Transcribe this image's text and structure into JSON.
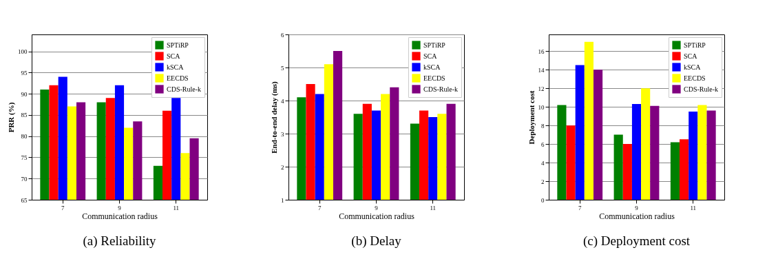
{
  "chart_data": [
    {
      "type": "bar",
      "xlabel": "Communication radius",
      "ylabel": "PRR (%)",
      "categories": [
        "7",
        "9",
        "11"
      ],
      "ylim": [
        65,
        104
      ],
      "yticks": [
        65,
        70,
        75,
        80,
        85,
        90,
        95,
        100
      ],
      "grid": "y",
      "legend": "top right",
      "annotations": [
        "(a) Reliability"
      ],
      "series": [
        {
          "name": "SPTiRP",
          "color": "#008000",
          "values": [
            91,
            88,
            73
          ]
        },
        {
          "name": "SCA",
          "color": "#ff0000",
          "values": [
            92,
            89,
            86
          ]
        },
        {
          "name": "kSCA",
          "color": "#0000ff",
          "values": [
            94,
            92,
            89
          ]
        },
        {
          "name": "EECDS",
          "color": "#ffff00",
          "values": [
            87,
            82,
            76
          ]
        },
        {
          "name": "CDS-Rule-k",
          "color": "#800080",
          "values": [
            88,
            83.5,
            79.5
          ]
        }
      ]
    },
    {
      "type": "bar",
      "xlabel": "Communication radius",
      "ylabel": "End-to-end delay (ms)",
      "categories": [
        "7",
        "9",
        "11"
      ],
      "ylim": [
        1,
        6
      ],
      "yticks": [
        1,
        2,
        3,
        4,
        5,
        6
      ],
      "grid": "y",
      "legend": "top right",
      "annotations": [
        "(b) Delay"
      ],
      "series": [
        {
          "name": "SPTiRP",
          "color": "#008000",
          "values": [
            4.1,
            3.6,
            3.3
          ]
        },
        {
          "name": "SCA",
          "color": "#ff0000",
          "values": [
            4.5,
            3.9,
            3.7
          ]
        },
        {
          "name": "kSCA",
          "color": "#0000ff",
          "values": [
            4.2,
            3.7,
            3.5
          ]
        },
        {
          "name": "EECDS",
          "color": "#ffff00",
          "values": [
            5.1,
            4.2,
            3.6
          ]
        },
        {
          "name": "CDS-Rule-k",
          "color": "#800080",
          "values": [
            5.5,
            4.4,
            3.9
          ]
        }
      ]
    },
    {
      "type": "bar",
      "xlabel": "Communication radius",
      "ylabel": "Deployment cost",
      "categories": [
        "7",
        "9",
        "11"
      ],
      "ylim": [
        0,
        17.8
      ],
      "yticks": [
        0,
        2,
        4,
        6,
        8,
        10,
        12,
        14,
        16
      ],
      "grid": "y",
      "legend": "top right",
      "annotations": [
        "(c) Deployment cost"
      ],
      "series": [
        {
          "name": "SPTiRP",
          "color": "#008000",
          "values": [
            10.2,
            7,
            6.2
          ]
        },
        {
          "name": "SCA",
          "color": "#ff0000",
          "values": [
            8,
            6,
            6.5
          ]
        },
        {
          "name": "kSCA",
          "color": "#0000ff",
          "values": [
            14.5,
            10.3,
            9.5
          ]
        },
        {
          "name": "EECDS",
          "color": "#ffff00",
          "values": [
            17,
            12,
            10.2
          ]
        },
        {
          "name": "CDS-Rule-k",
          "color": "#800080",
          "values": [
            14,
            10.1,
            9.6
          ]
        }
      ]
    }
  ]
}
